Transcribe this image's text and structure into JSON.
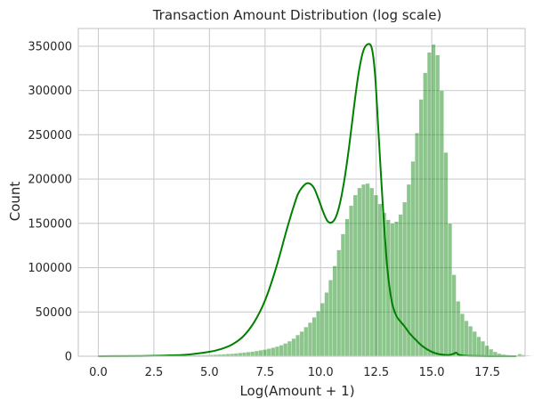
{
  "chart_data": {
    "type": "bar",
    "title": "Transaction Amount Distribution (log scale)",
    "xlabel": "Log(Amount + 1)",
    "ylabel": "Count",
    "xlim": [
      -0.9,
      19.2
    ],
    "ylim": [
      0,
      370000
    ],
    "x_ticks": [
      "0.0",
      "2.5",
      "5.0",
      "7.5",
      "10.0",
      "12.5",
      "15.0",
      "17.5"
    ],
    "x_tick_values": [
      0,
      2.5,
      5,
      7.5,
      10,
      12.5,
      15,
      17.5
    ],
    "y_ticks": [
      "0",
      "50000",
      "100000",
      "150000",
      "200000",
      "250000",
      "300000",
      "350000"
    ],
    "y_tick_values": [
      0,
      50000,
      100000,
      150000,
      200000,
      250000,
      300000,
      350000
    ],
    "grid": true,
    "bar_color": "#008000",
    "bar_opacity": 0.45,
    "kde_color": "#008000",
    "histogram": {
      "bin_start": 0,
      "bin_width": 0.185,
      "counts": [
        300,
        200,
        200,
        200,
        200,
        300,
        300,
        300,
        300,
        300,
        300,
        400,
        400,
        400,
        500,
        500,
        600,
        600,
        700,
        700,
        800,
        900,
        1000,
        1100,
        1200,
        1300,
        1400,
        1600,
        1800,
        2000,
        2300,
        2600,
        2900,
        3300,
        3700,
        4200,
        4700,
        5300,
        6000,
        6800,
        7600,
        8600,
        9700,
        11000,
        12500,
        14500,
        17000,
        20000,
        24000,
        28000,
        33000,
        38000,
        44000,
        51000,
        60000,
        72000,
        86000,
        102000,
        120000,
        138000,
        155000,
        170000,
        182000,
        190000,
        194000,
        195000,
        190000,
        182000,
        172000,
        162000,
        154000,
        150000,
        152000,
        160000,
        174000,
        194000,
        220000,
        252000,
        290000,
        320000,
        343000,
        352000,
        340000,
        300000,
        230000,
        150000,
        92000,
        62000,
        48000,
        40000,
        34000,
        28000,
        22000,
        17000,
        12000,
        8000,
        5000,
        3000,
        2000,
        1500,
        1200,
        1000,
        2500,
        1500,
        700,
        400,
        300,
        200,
        200,
        100,
        100,
        100,
        100,
        100,
        50,
        50,
        50,
        50,
        50,
        50
      ]
    },
    "kde": {
      "x": [
        0.0,
        2.0,
        3.0,
        4.0,
        5.0,
        5.5,
        6.0,
        6.5,
        7.0,
        7.5,
        8.0,
        8.5,
        8.8,
        9.0,
        9.3,
        9.5,
        9.7,
        9.9,
        10.1,
        10.3,
        10.5,
        10.7,
        10.9,
        11.1,
        11.3,
        11.5,
        11.7,
        11.9,
        12.1,
        12.3,
        12.45,
        12.6,
        12.8,
        13.0,
        13.2,
        13.4,
        13.6,
        13.8,
        14.0,
        14.3,
        14.6,
        15.0,
        15.4,
        15.8,
        16.0,
        16.1,
        16.2,
        16.5,
        17.0,
        18.0,
        18.8
      ],
      "y": [
        0,
        300,
        800,
        1800,
        5000,
        8000,
        13000,
        22000,
        38000,
        63000,
        100000,
        145000,
        170000,
        184000,
        194000,
        195000,
        190000,
        178000,
        164000,
        153000,
        151000,
        158000,
        176000,
        204000,
        240000,
        281000,
        318000,
        343000,
        352000,
        348000,
        318000,
        255000,
        170000,
        100000,
        62000,
        46000,
        39000,
        33000,
        26000,
        18000,
        11000,
        5000,
        2000,
        1500,
        3000,
        4000,
        2000,
        600,
        200,
        0,
        0
      ]
    }
  }
}
